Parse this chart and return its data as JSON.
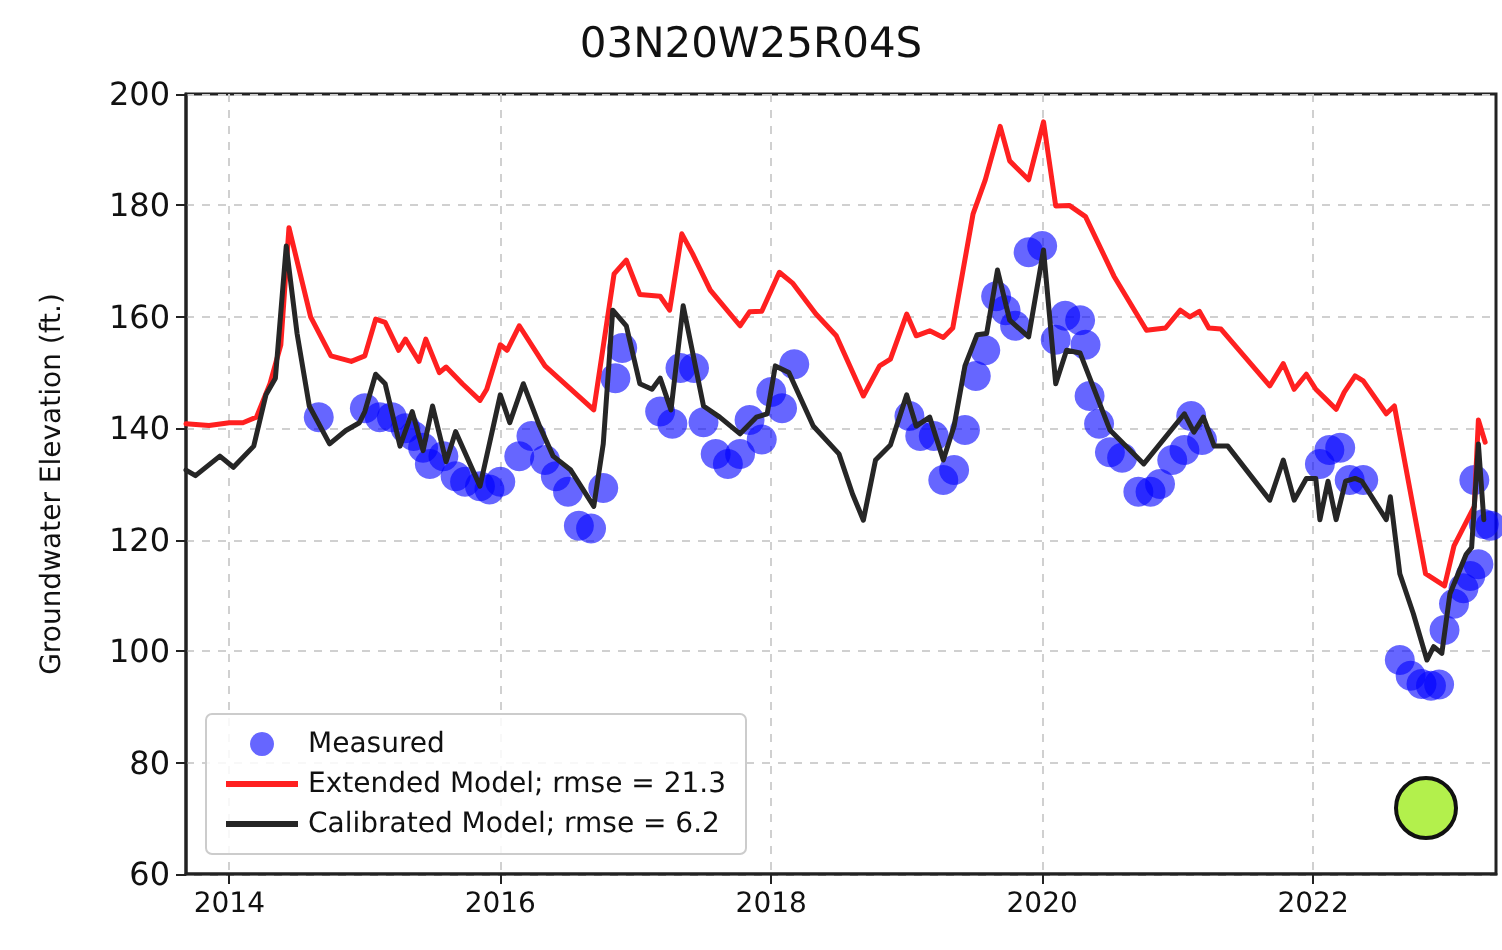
{
  "chart_data": {
    "type": "line",
    "title": "03N20W25R04S",
    "ylabel": "Groundwater Elevation (ft.)",
    "xlim": [
      2013.68,
      2023.35
    ],
    "xticks": [
      2014,
      2016,
      2018,
      2020,
      2022
    ],
    "ylim": [
      60,
      200
    ],
    "yticks": [
      60,
      80,
      100,
      120,
      140,
      160,
      180,
      200
    ],
    "grid": true,
    "legend": "bottom left",
    "series": [
      {
        "name": "Measured",
        "type": "scatter",
        "marker": "circle",
        "color": "#0000ff",
        "x": [
          2014.66,
          2015.0,
          2015.11,
          2015.2,
          2015.3,
          2015.36,
          2015.43,
          2015.48,
          2015.58,
          2015.67,
          2015.74,
          2015.85,
          2015.92,
          2016.0,
          2016.14,
          2016.23,
          2016.33,
          2016.41,
          2016.5,
          2016.58,
          2016.67,
          2016.76,
          2016.85,
          2016.9,
          2017.18,
          2017.27,
          2017.33,
          2017.43,
          2017.5,
          2017.59,
          2017.68,
          2017.77,
          2017.84,
          2017.93,
          2018.0,
          2018.08,
          2018.17,
          2019.02,
          2019.1,
          2019.2,
          2019.27,
          2019.35,
          2019.43,
          2019.51,
          2019.58,
          2019.66,
          2019.73,
          2019.8,
          2019.9,
          2020.0,
          2020.1,
          2020.17,
          2020.28,
          2020.32,
          2020.35,
          2020.42,
          2020.5,
          2020.59,
          2020.71,
          2020.8,
          2020.87,
          2020.96,
          2021.05,
          2021.1,
          2021.18,
          2022.05,
          2022.12,
          2022.2,
          2022.27,
          2022.37,
          2022.64,
          2022.72,
          2022.8,
          2022.87,
          2022.93,
          2022.97,
          2023.04,
          2023.11,
          2023.16,
          2023.22,
          2023.19,
          2023.26,
          2023.31
        ],
        "values": [
          142,
          143.6,
          142,
          142,
          140,
          138.6,
          136.5,
          133.6,
          135,
          131.4,
          130.4,
          129.6,
          129,
          130.4,
          135,
          138.6,
          134.3,
          131.4,
          128.6,
          122.5,
          122,
          129.3,
          149,
          154.4,
          143,
          140.8,
          150.8,
          150.8,
          141.1,
          135.4,
          133.6,
          135.4,
          141.5,
          138,
          146.5,
          143.6,
          151.5,
          142.2,
          138.6,
          138.6,
          130.7,
          132.5,
          139.7,
          149.4,
          154,
          163.7,
          161.2,
          158.4,
          171.6,
          172.7,
          155.9,
          160.2,
          159.4,
          155,
          145.8,
          140.8,
          135.7,
          134.7,
          128.6,
          128.6,
          130,
          134.3,
          136.1,
          142.2,
          137.9,
          133.6,
          136.1,
          136.5,
          130.7,
          130.7,
          98.4,
          95.6,
          94.1,
          93.8,
          94,
          103.8,
          108.5,
          111.3,
          113.5,
          115.6,
          130.7,
          122.8,
          122.5
        ]
      },
      {
        "name": "Extended Model; rmse = 21.3",
        "type": "line",
        "marker": "none",
        "line_style": "solid",
        "color": "#ff2020",
        "x": [
          2013.68,
          2013.85,
          2014.0,
          2014.1,
          2014.2,
          2014.3,
          2014.38,
          2014.44,
          2014.6,
          2014.75,
          2014.9,
          2015.0,
          2015.08,
          2015.15,
          2015.25,
          2015.3,
          2015.4,
          2015.45,
          2015.55,
          2015.6,
          2015.72,
          2015.85,
          2015.9,
          2016.0,
          2016.05,
          2016.14,
          2016.33,
          2016.69,
          2016.84,
          2016.93,
          2017.03,
          2017.18,
          2017.25,
          2017.34,
          2017.42,
          2017.55,
          2017.77,
          2017.84,
          2017.93,
          2018.06,
          2018.16,
          2018.33,
          2018.48,
          2018.68,
          2018.8,
          2018.88,
          2019.0,
          2019.07,
          2019.17,
          2019.27,
          2019.34,
          2019.49,
          2019.58,
          2019.69,
          2019.76,
          2019.9,
          2020.01,
          2020.1,
          2020.2,
          2020.32,
          2020.53,
          2020.77,
          2020.91,
          2021.02,
          2021.09,
          2021.16,
          2021.23,
          2021.32,
          2021.68,
          2021.78,
          2021.86,
          2021.95,
          2022.02,
          2022.1,
          2022.17,
          2022.23,
          2022.31,
          2022.37,
          2022.54,
          2022.6,
          2022.83,
          2022.97,
          2023.04,
          2023.19,
          2023.22,
          2023.27
        ],
        "values": [
          140.8,
          140.5,
          141,
          141,
          142,
          148,
          155,
          176,
          160,
          153,
          152,
          153,
          159.6,
          159,
          154,
          156,
          152,
          156,
          150,
          151,
          148,
          145,
          147,
          155,
          154,
          158.4,
          151.2,
          143.3,
          167.7,
          170.2,
          164,
          163.7,
          161.2,
          174.9,
          171.3,
          164.8,
          158.4,
          160.9,
          161,
          168,
          166,
          160.5,
          156.6,
          145.8,
          151.2,
          152.4,
          160.5,
          156.6,
          157.5,
          156.3,
          158,
          178.5,
          184.6,
          194.2,
          188,
          184.6,
          195,
          179.9,
          180,
          178,
          167.3,
          157.6,
          158,
          161.2,
          160,
          161,
          158,
          157.8,
          147.6,
          151.6,
          147,
          149.7,
          147,
          145.1,
          143.4,
          146.5,
          149.4,
          148.5,
          142.6,
          144,
          113.9,
          111.7,
          118.9,
          126,
          141.5,
          137.5
        ]
      },
      {
        "name": "Calibrated Model; rmse = 6.2",
        "type": "line",
        "marker": "none",
        "line_style": "solid",
        "color": "#262626",
        "x": [
          2013.68,
          2013.75,
          2013.93,
          2014.03,
          2014.18,
          2014.27,
          2014.34,
          2014.42,
          2014.5,
          2014.59,
          2014.74,
          2014.86,
          2014.96,
          2015.0,
          2015.08,
          2015.15,
          2015.26,
          2015.35,
          2015.43,
          2015.5,
          2015.6,
          2015.67,
          2015.85,
          2016.0,
          2016.07,
          2016.17,
          2016.29,
          2016.39,
          2016.52,
          2016.69,
          2016.76,
          2016.83,
          2016.93,
          2017.03,
          2017.12,
          2017.18,
          2017.26,
          2017.35,
          2017.5,
          2017.62,
          2017.77,
          2017.89,
          2017.97,
          2018.03,
          2018.13,
          2018.31,
          2018.5,
          2018.6,
          2018.68,
          2018.77,
          2018.88,
          2019.0,
          2019.07,
          2019.17,
          2019.27,
          2019.35,
          2019.43,
          2019.52,
          2019.59,
          2019.67,
          2019.76,
          2019.9,
          2020.01,
          2020.1,
          2020.18,
          2020.28,
          2020.5,
          2020.75,
          2021.05,
          2021.12,
          2021.19,
          2021.27,
          2021.37,
          2021.68,
          2021.78,
          2021.86,
          2021.95,
          2022.02,
          2022.05,
          2022.11,
          2022.17,
          2022.24,
          2022.31,
          2022.36,
          2022.54,
          2022.57,
          2022.64,
          2022.74,
          2022.84,
          2022.89,
          2022.95,
          2023.01,
          2023.13,
          2023.17,
          2023.22,
          2023.26
        ],
        "values": [
          132.5,
          131.5,
          135,
          133,
          136.8,
          146,
          149,
          172.7,
          157,
          144,
          137.2,
          139.6,
          141,
          143,
          149.7,
          148,
          136.8,
          143,
          136,
          144,
          134,
          139.4,
          129.6,
          146,
          141,
          148,
          140.4,
          135,
          132.5,
          126,
          137.2,
          161.2,
          158.4,
          148,
          147,
          149,
          143.3,
          162,
          144,
          142,
          139,
          142,
          142.6,
          151.2,
          150,
          140.4,
          135.4,
          128.2,
          123.5,
          134.3,
          137,
          146,
          140.4,
          142,
          134.3,
          140.4,
          151.2,
          156.8,
          157,
          168.4,
          159.4,
          156.4,
          172,
          148,
          154,
          153.5,
          139.7,
          133.6,
          142.6,
          139.3,
          142,
          136.8,
          136.8,
          127.1,
          134.3,
          127.1,
          131,
          131,
          123.6,
          130.5,
          123.6,
          130.5,
          131,
          130.5,
          123.6,
          127.7,
          113.9,
          106.7,
          98.4,
          100.8,
          99.6,
          110.3,
          117.4,
          118.6,
          137.2,
          123.6
        ]
      }
    ]
  }
}
